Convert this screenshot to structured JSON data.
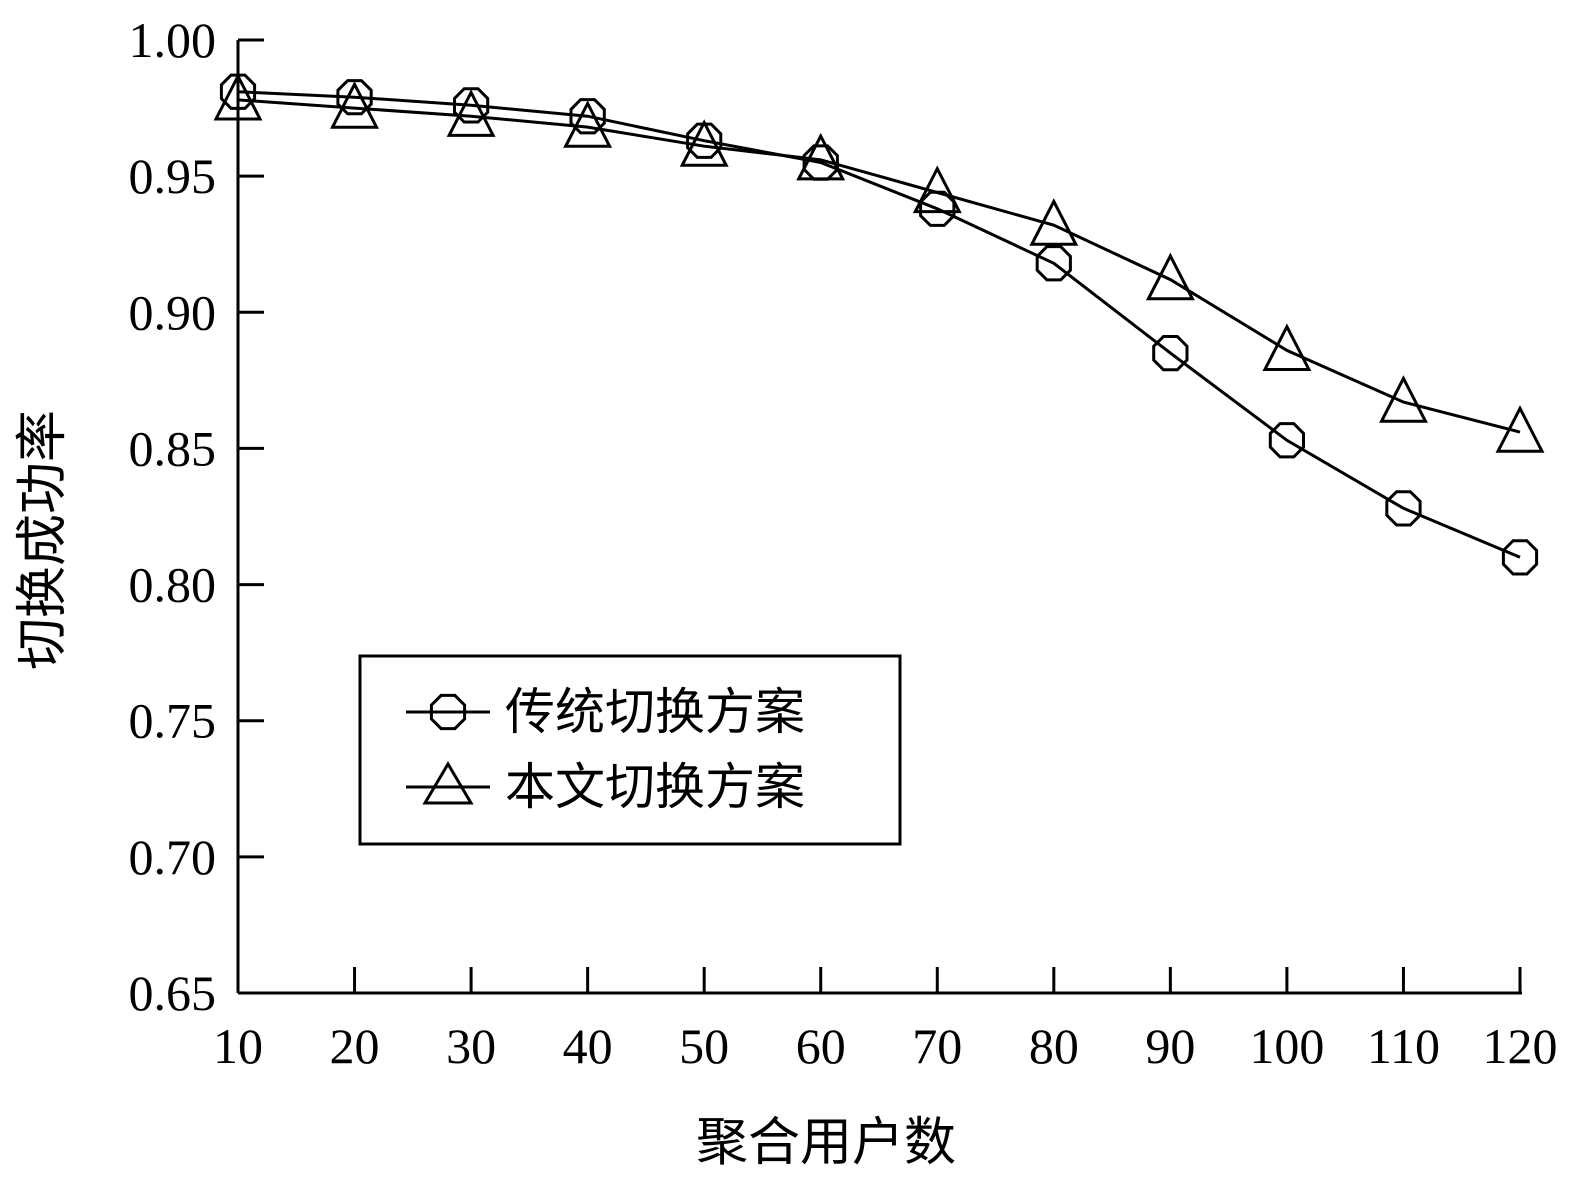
{
  "chart_data": {
    "type": "line",
    "xlabel": "聚合用户数",
    "ylabel": "切换成功率",
    "x": [
      10,
      20,
      30,
      40,
      50,
      60,
      70,
      80,
      90,
      100,
      110,
      120
    ],
    "xlim": [
      10,
      120
    ],
    "ylim": [
      0.65,
      1.0
    ],
    "x_ticks": [
      "10",
      "20",
      "30",
      "40",
      "50",
      "60",
      "70",
      "80",
      "90",
      "100",
      "110",
      "120"
    ],
    "y_ticks": [
      "0.65",
      "0.70",
      "0.75",
      "0.80",
      "0.85",
      "0.90",
      "0.95",
      "1.00"
    ],
    "y_tick_values": [
      0.65,
      0.7,
      0.75,
      0.8,
      0.85,
      0.9,
      0.95,
      1.0
    ],
    "grid": false,
    "legend_position": "lower-left",
    "series": [
      {
        "name": "传统切换方案",
        "marker": "circle",
        "values": [
          0.981,
          0.979,
          0.976,
          0.972,
          0.963,
          0.955,
          0.938,
          0.918,
          0.885,
          0.853,
          0.828,
          0.81
        ]
      },
      {
        "name": "本文切换方案",
        "marker": "triangle",
        "values": [
          0.978,
          0.975,
          0.972,
          0.968,
          0.961,
          0.956,
          0.944,
          0.932,
          0.912,
          0.886,
          0.867,
          0.856
        ]
      }
    ],
    "colors": {
      "line": "#000000",
      "background": "#ffffff"
    }
  }
}
